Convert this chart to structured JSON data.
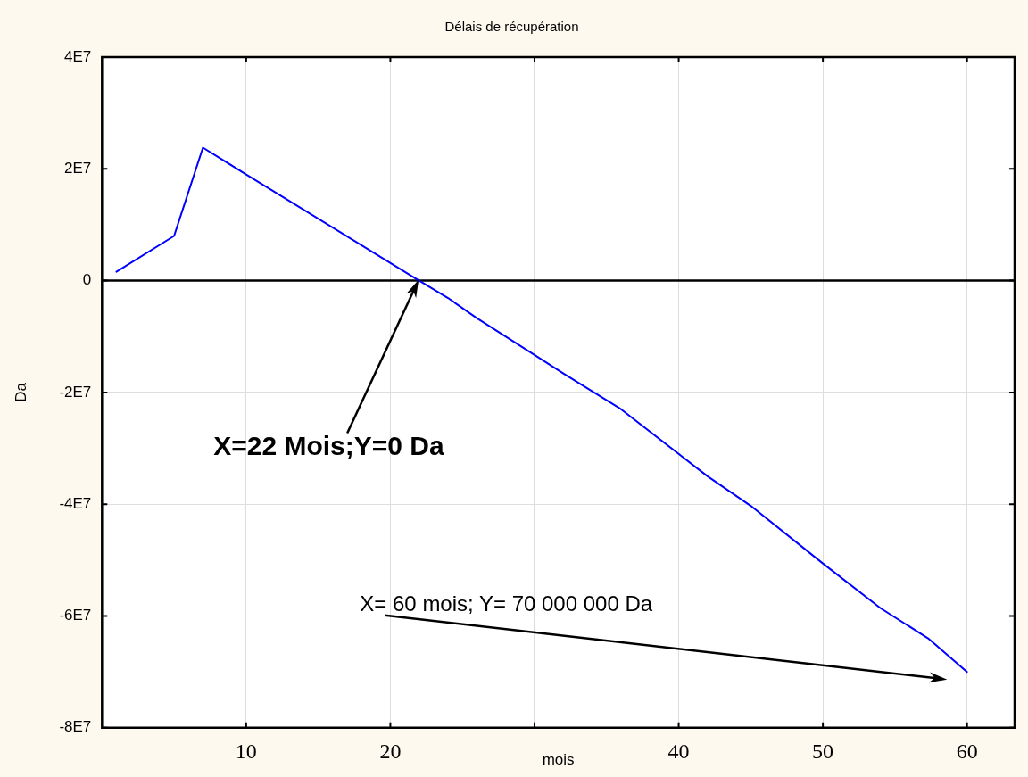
{
  "chart_data": {
    "type": "line",
    "title": "Délais de récupération",
    "xlabel": "mois",
    "ylabel": "Da",
    "x": [
      1,
      5,
      7,
      10,
      22,
      24,
      26,
      30,
      32,
      34,
      36,
      42,
      45,
      50,
      54,
      57.3,
      60
    ],
    "series": [
      {
        "color": "#0000ff",
        "values": [
          1600000,
          8000000,
          23800000,
          19000000,
          0,
          -3100000,
          -6700000,
          -13300000,
          -16600000,
          -19800000,
          -23000000,
          -35000000,
          -40300000,
          -50600000,
          -58600000,
          -64000000,
          -70000000
        ]
      }
    ],
    "xlim": [
      0,
      63.3
    ],
    "xticks": [
      10,
      20,
      {
        "value": 30,
        "label": null
      },
      40,
      50,
      60
    ],
    "ylim": [
      -80000000,
      40000000
    ],
    "yticks": [
      {
        "value": -80000000,
        "label": "-8E7"
      },
      {
        "value": -60000000,
        "label": "-6E7"
      },
      {
        "value": -40000000,
        "label": "-4E7"
      },
      {
        "value": -20000000,
        "label": "-2E7"
      },
      0,
      {
        "value": 20000000,
        "label": "2E7"
      },
      {
        "value": 40000000,
        "label": "4E7"
      }
    ],
    "ref_lines": [
      {
        "axis": "y",
        "value": 0,
        "color": "#000000"
      }
    ],
    "annotations": [
      "X=22 Mois;Y=0 Da",
      "X= 60 mois; Y= 70 000 000 Da"
    ],
    "grid": true,
    "legend": false,
    "marker": "none",
    "line_style": "solid"
  }
}
